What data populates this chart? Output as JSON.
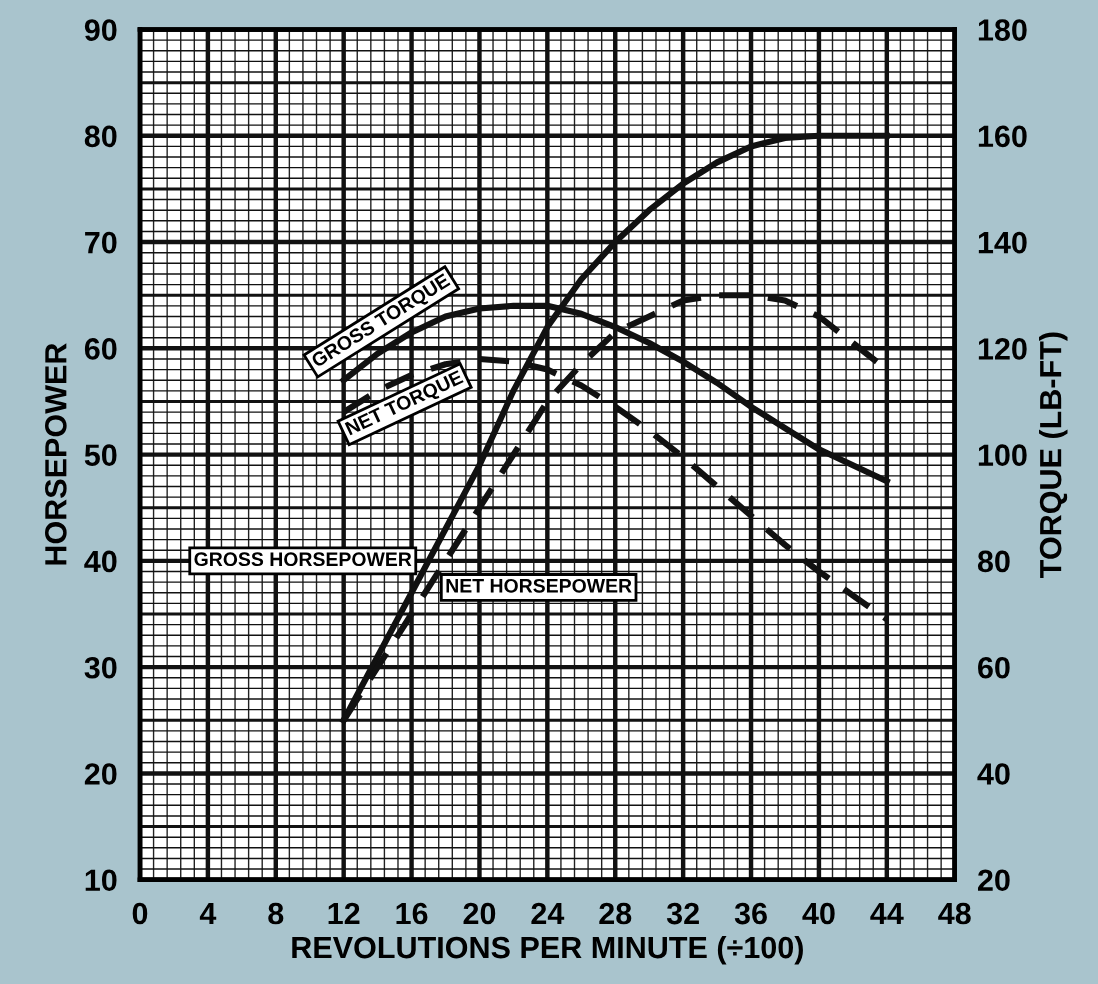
{
  "chart_data": {
    "type": "line",
    "xlabel": "REVOLUTIONS PER MINUTE (÷100)",
    "ylabel": "HORSEPOWER",
    "y2label": "TORQUE (LB-FT)",
    "xlim": [
      0,
      48
    ],
    "xticks": [
      0,
      4,
      8,
      12,
      16,
      20,
      24,
      28,
      32,
      36,
      40,
      44,
      48
    ],
    "ylim": [
      10,
      90
    ],
    "yticks": [
      10,
      20,
      30,
      40,
      50,
      60,
      70,
      80,
      90
    ],
    "y2lim": [
      20,
      180
    ],
    "y2ticks": [
      20,
      40,
      60,
      80,
      100,
      120,
      140,
      160,
      180
    ],
    "grid": true,
    "legend": false,
    "marker": "none",
    "x": [
      12,
      14,
      16,
      18,
      20,
      22,
      24,
      26,
      28,
      30,
      32,
      34,
      36,
      38,
      40,
      42,
      44
    ],
    "series": [
      {
        "name": "GROSS TORQUE",
        "color": "#111111",
        "axis": "y2",
        "line_style": "solid",
        "values": [
          114,
          119,
          123,
          126,
          127.5,
          128,
          128,
          126.5,
          124,
          121,
          117.5,
          113.5,
          109,
          105,
          101,
          98,
          95
        ]
      },
      {
        "name": "NET TORQUE",
        "color": "#111111",
        "axis": "y2",
        "line_style": "dashed",
        "values": [
          108,
          112,
          115,
          117,
          118,
          117.5,
          116,
          113,
          109,
          104.5,
          99.5,
          94,
          88.5,
          83,
          78,
          73.5,
          69
        ]
      },
      {
        "name": "GROSS HORSEPOWER",
        "color": "#111111",
        "line_style": "solid",
        "values": [
          25,
          31,
          37,
          43,
          49,
          56,
          62,
          66.5,
          70,
          73,
          75.5,
          77.5,
          79,
          79.8,
          80,
          80,
          80
        ]
      },
      {
        "name": "NET HORSEPOWER",
        "color": "#111111",
        "line_style": "dashed",
        "values": [
          25,
          30,
          35,
          40,
          45,
          50,
          55,
          58.5,
          61.5,
          63,
          64.5,
          65,
          65,
          64.5,
          63,
          60.5,
          58
        ]
      }
    ]
  }
}
